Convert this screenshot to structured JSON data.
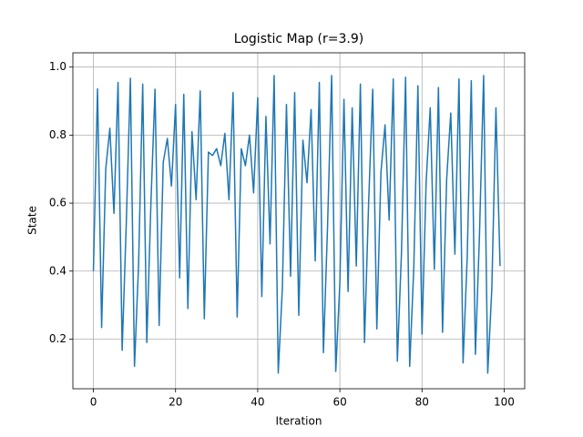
{
  "chart_data": {
    "type": "line",
    "title": "Logistic Map (r=3.9)",
    "xlabel": "Iteration",
    "ylabel": "State",
    "x": [
      0,
      1,
      2,
      3,
      4,
      5,
      6,
      7,
      8,
      9,
      10,
      11,
      12,
      13,
      14,
      15,
      16,
      17,
      18,
      19,
      20,
      21,
      22,
      23,
      24,
      25,
      26,
      27,
      28,
      29,
      30,
      31,
      32,
      33,
      34,
      35,
      36,
      37,
      38,
      39,
      40,
      41,
      42,
      43,
      44,
      45,
      46,
      47,
      48,
      49,
      50,
      51,
      52,
      53,
      54,
      55,
      56,
      57,
      58,
      59,
      60,
      61,
      62,
      63,
      64,
      65,
      66,
      67,
      68,
      69,
      70,
      71,
      72,
      73,
      74,
      75,
      76,
      77,
      78,
      79,
      80,
      81,
      82,
      83,
      84,
      85,
      86,
      87,
      88,
      89,
      90,
      91,
      92,
      93,
      94,
      95,
      96,
      97,
      98,
      99
    ],
    "series": [
      {
        "name": "State",
        "color": "#1f77b4",
        "values": [
          0.4,
          0.936,
          0.234,
          0.7,
          0.82,
          0.57,
          0.955,
          0.167,
          0.54,
          0.967,
          0.12,
          0.42,
          0.95,
          0.19,
          0.6,
          0.935,
          0.24,
          0.72,
          0.79,
          0.65,
          0.89,
          0.38,
          0.92,
          0.29,
          0.81,
          0.61,
          0.93,
          0.26,
          0.75,
          0.74,
          0.76,
          0.71,
          0.805,
          0.61,
          0.925,
          0.265,
          0.76,
          0.71,
          0.8,
          0.63,
          0.91,
          0.325,
          0.855,
          0.48,
          0.975,
          0.1,
          0.35,
          0.89,
          0.385,
          0.925,
          0.27,
          0.785,
          0.66,
          0.875,
          0.43,
          0.955,
          0.16,
          0.53,
          0.975,
          0.105,
          0.365,
          0.905,
          0.34,
          0.88,
          0.415,
          0.95,
          0.19,
          0.6,
          0.935,
          0.23,
          0.69,
          0.83,
          0.55,
          0.965,
          0.135,
          0.455,
          0.97,
          0.12,
          0.41,
          0.945,
          0.215,
          0.66,
          0.88,
          0.405,
          0.94,
          0.22,
          0.67,
          0.865,
          0.45,
          0.965,
          0.13,
          0.44,
          0.96,
          0.155,
          0.51,
          0.975,
          0.1,
          0.35,
          0.88,
          0.415
        ]
      }
    ],
    "xlim": [
      -5,
      105
    ],
    "xticks": [
      0,
      20,
      40,
      60,
      80,
      100
    ],
    "ylim": [
      0.054,
      1.042
    ],
    "yticks": [
      {
        "value": 0.2,
        "label": "0.2"
      },
      {
        "value": 0.4,
        "label": "0.4"
      },
      {
        "value": 0.6,
        "label": "0.6"
      },
      {
        "value": 0.8,
        "label": "0.8"
      },
      {
        "value": 1.0,
        "label": "1.0"
      }
    ],
    "grid": true
  }
}
